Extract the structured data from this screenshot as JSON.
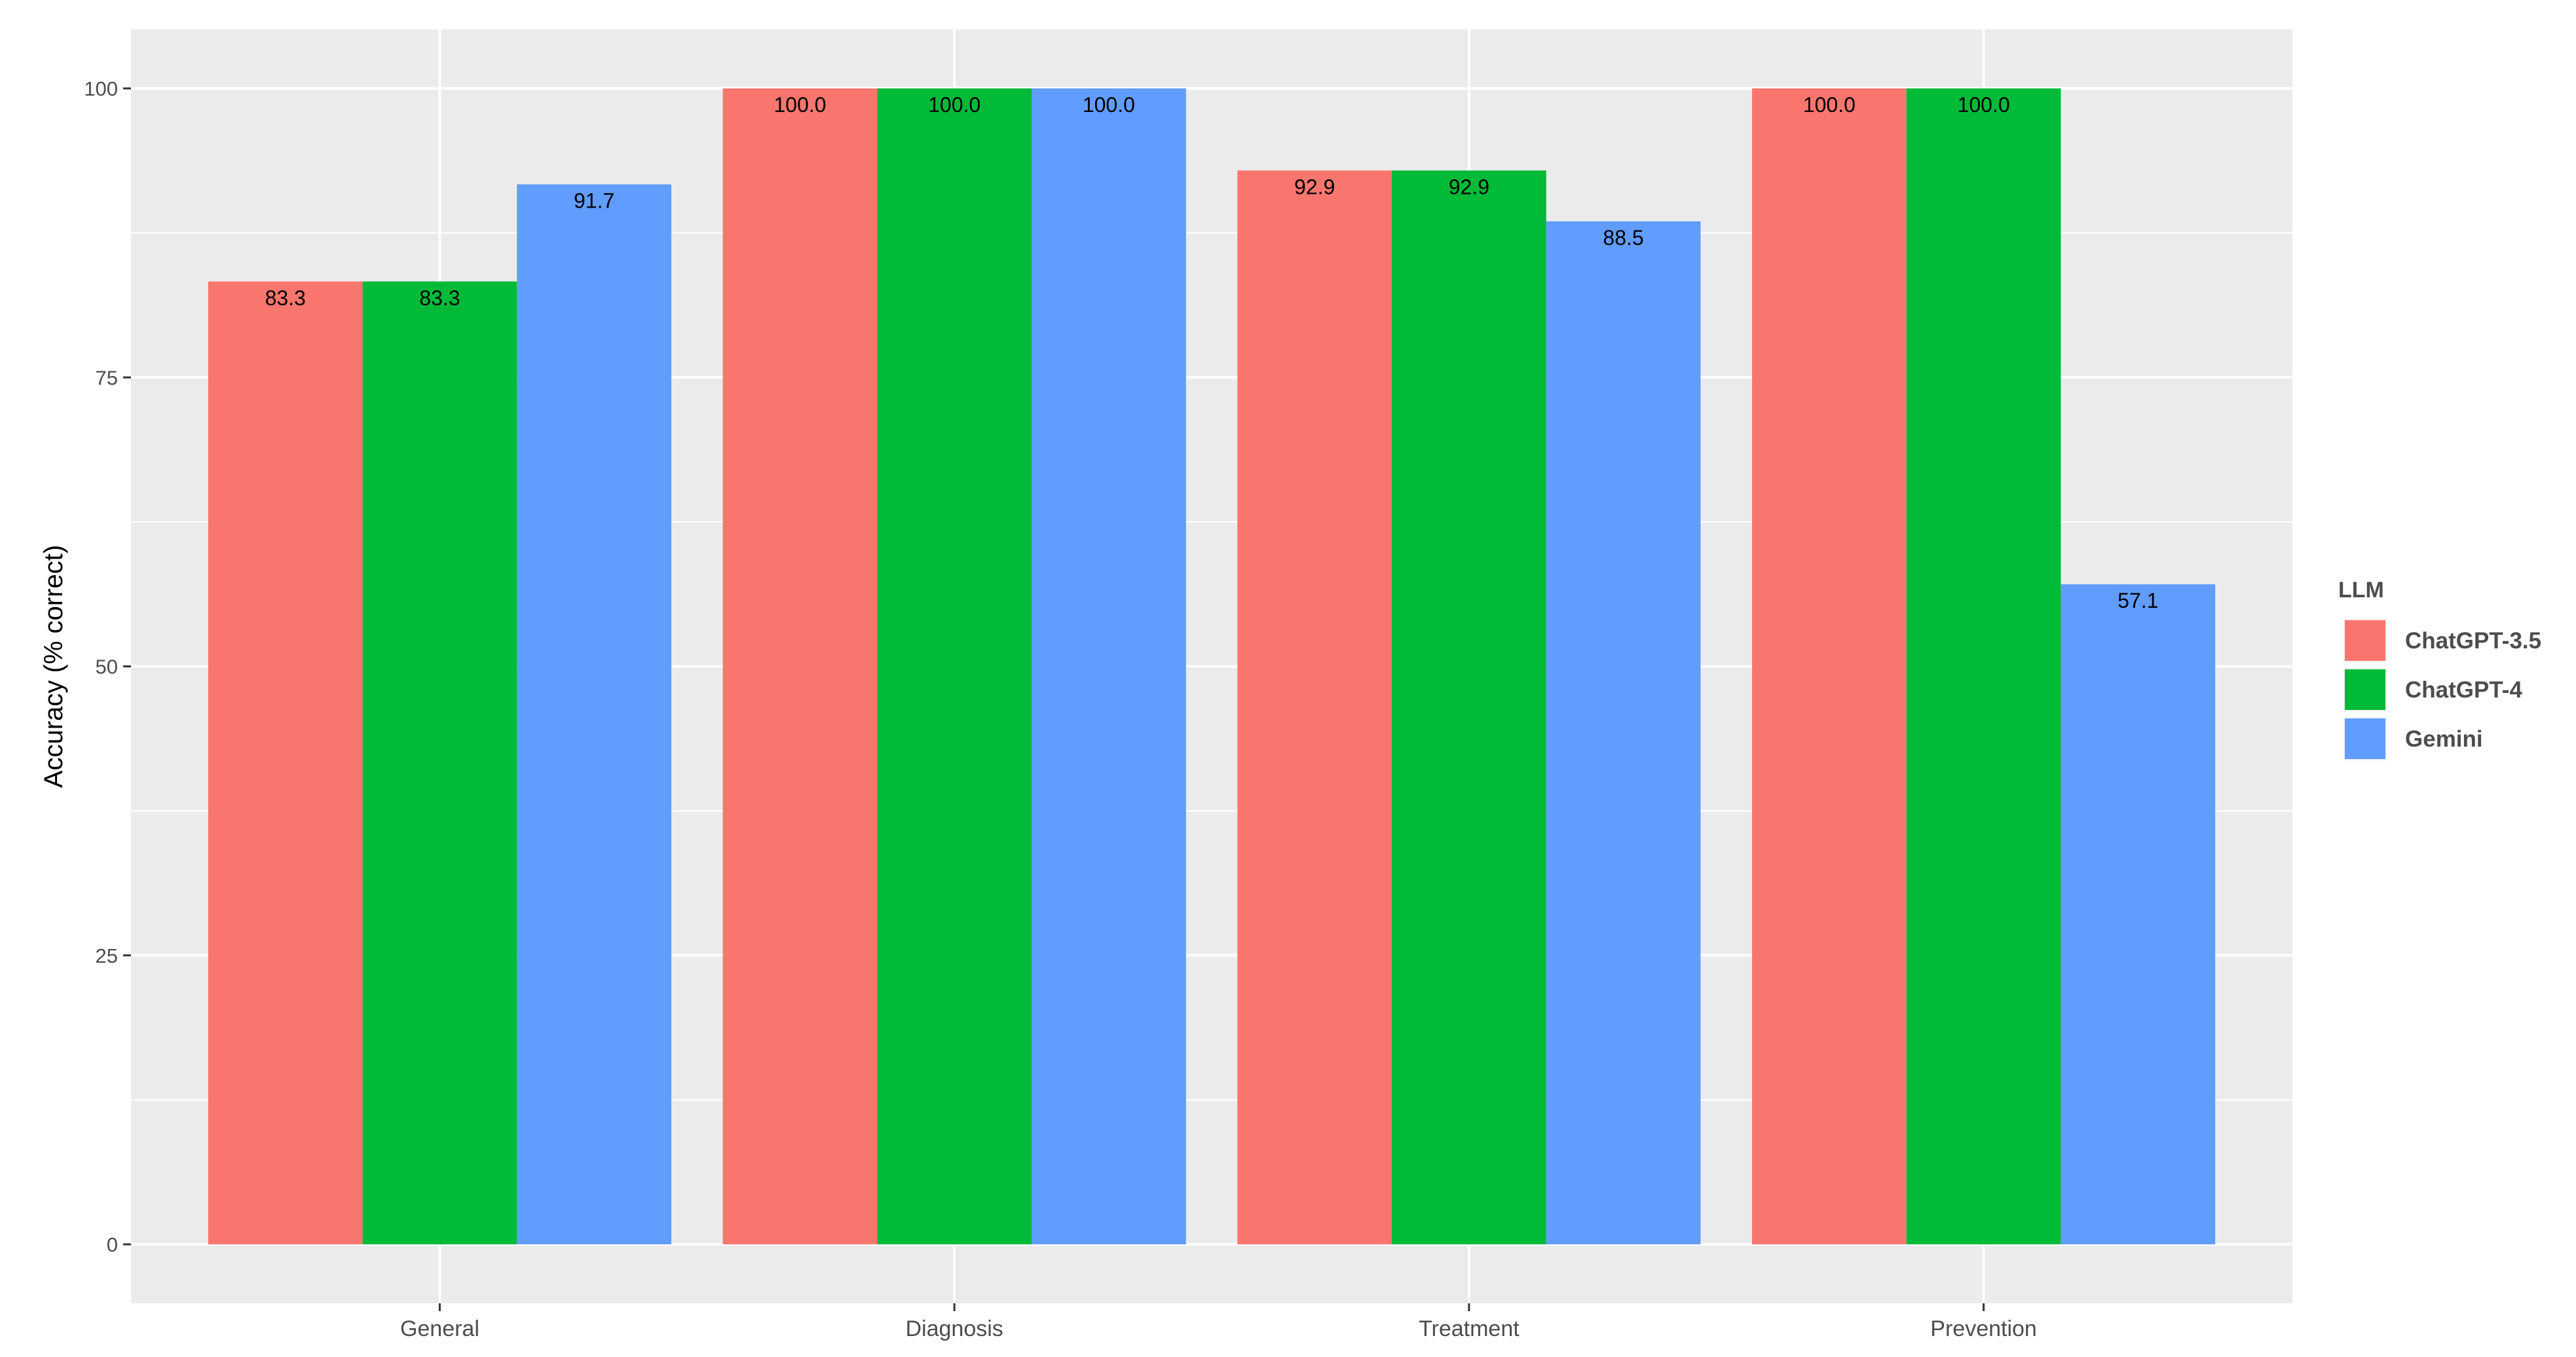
{
  "chart_data": {
    "type": "bar",
    "categories": [
      "General",
      "Diagnosis",
      "Treatment",
      "Prevention"
    ],
    "series": [
      {
        "name": "ChatGPT-3.5",
        "color": "#F8766D",
        "values": [
          83.3,
          100.0,
          92.9,
          100.0
        ]
      },
      {
        "name": "ChatGPT-4",
        "color": "#00BA38",
        "values": [
          83.3,
          100.0,
          92.9,
          100.0
        ]
      },
      {
        "name": "Gemini",
        "color": "#619CFF",
        "values": [
          91.7,
          100.0,
          88.5,
          57.1
        ]
      }
    ],
    "title": "",
    "xlabel": "",
    "ylabel": "Accuracy (% correct)",
    "ylim": [
      0,
      100
    ],
    "yticks": [
      0,
      25,
      50,
      75,
      100
    ],
    "grid": true,
    "legend": {
      "title": "LLM",
      "position": "right"
    },
    "panel_background": "#EBEBEB",
    "grid_color": "#FFFFFF"
  }
}
